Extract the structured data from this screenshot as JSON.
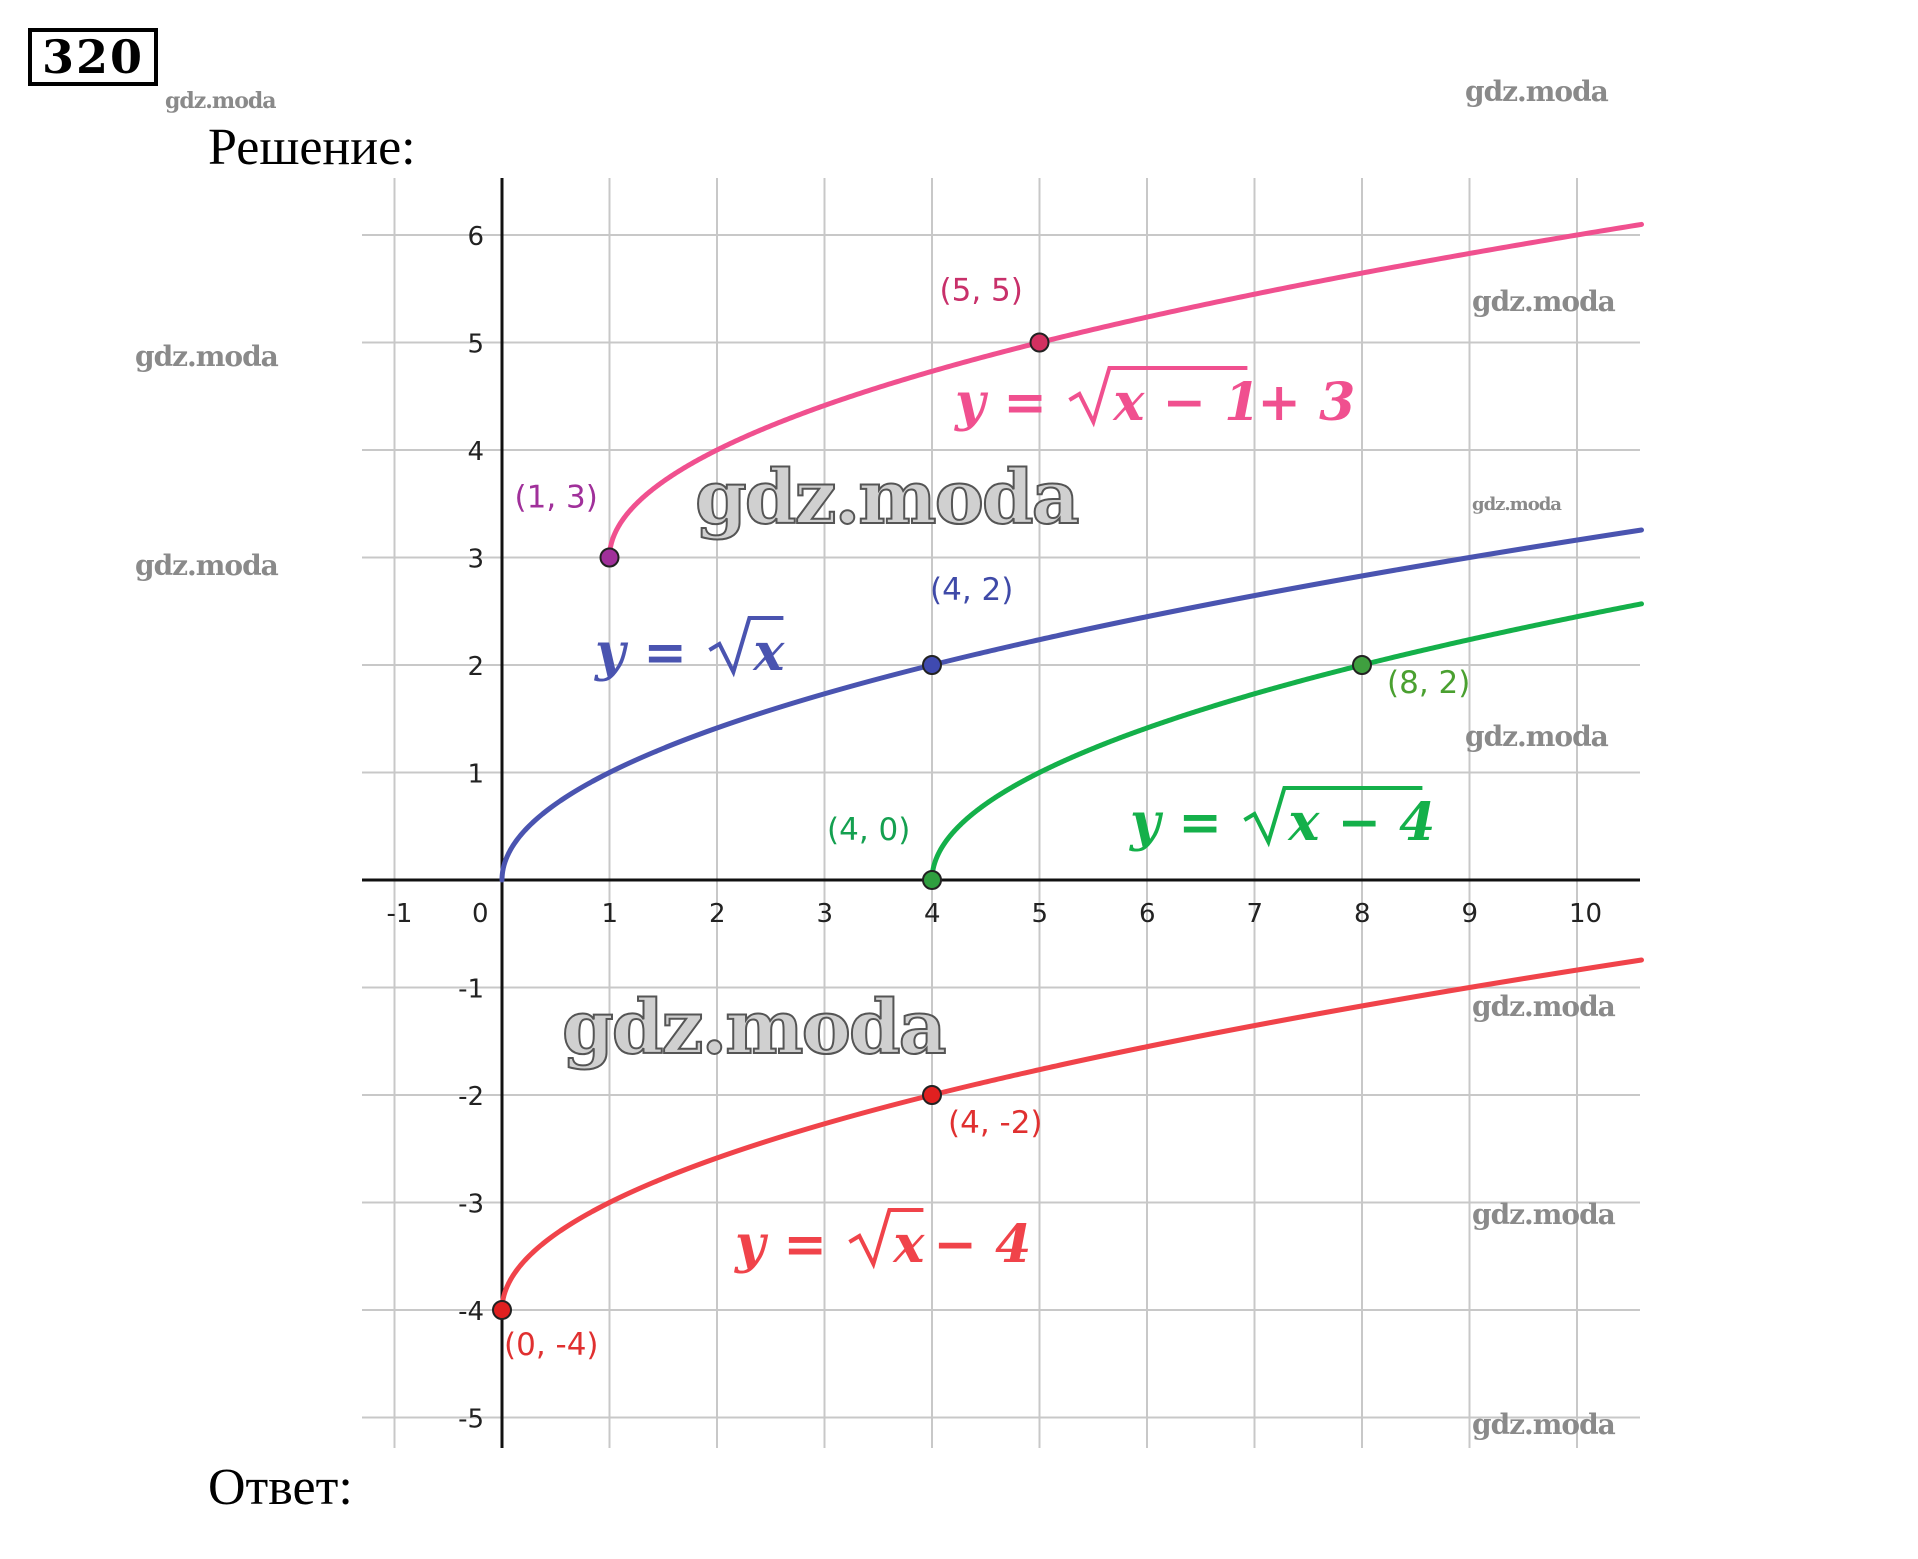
{
  "problem_number": "320",
  "heading": "Решение:",
  "answer_label": "Ответ:",
  "watermark": "gdz.moda",
  "chart_data": {
    "type": "line",
    "title": "",
    "xlabel": "",
    "ylabel": "",
    "xlim": [
      -1.3,
      10.6
    ],
    "ylim": [
      -5.3,
      6.5
    ],
    "grid": true,
    "x_ticks": [
      "-1",
      "0",
      "1",
      "2",
      "3",
      "4",
      "5",
      "6",
      "7",
      "8",
      "9",
      "10"
    ],
    "y_ticks": [
      "6",
      "5",
      "4",
      "3",
      "2",
      "1",
      "-1",
      "-2",
      "-3",
      "-4",
      "-5"
    ],
    "series": [
      {
        "formula": "y = √x − 1 + 3",
        "shift_x": 1,
        "shift_y": 3,
        "color": "#f0508f",
        "key_points": [
          [
            1,
            3
          ],
          [
            5,
            5
          ]
        ]
      },
      {
        "formula": "y = √x",
        "shift_x": 0,
        "shift_y": 0,
        "color": "#4a54b0",
        "key_points": [
          [
            4,
            2
          ]
        ]
      },
      {
        "formula": "y = √x − 4",
        "shift_x": 4,
        "shift_y": 0,
        "color": "#14b04a",
        "key_points": [
          [
            4,
            0
          ],
          [
            8,
            2
          ]
        ]
      },
      {
        "formula": "y = √x − 4",
        "shift_x": 0,
        "shift_y": -4,
        "color": "#f0434a",
        "key_points": [
          [
            0,
            -4
          ],
          [
            4,
            -2
          ]
        ]
      }
    ],
    "point_labels": [
      {
        "text": "(1, 3)",
        "color": "#a0309a"
      },
      {
        "text": "(5, 5)",
        "color": "#c8306a"
      },
      {
        "text": "(4, 2)",
        "color": "#3f4aa8"
      },
      {
        "text": "(8, 2)",
        "color": "#4aa030"
      },
      {
        "text": "(4, 0)",
        "color": "#14a050"
      },
      {
        "text": "(4, -2)",
        "color": "#e03030"
      },
      {
        "text": "(0, -4)",
        "color": "#e03030"
      }
    ],
    "point_colors": [
      "#a0309a",
      "#d23060",
      "#3f4ab0",
      "#3f9f3f",
      "#2f9f3f",
      "#e02020",
      "#e02020"
    ]
  }
}
